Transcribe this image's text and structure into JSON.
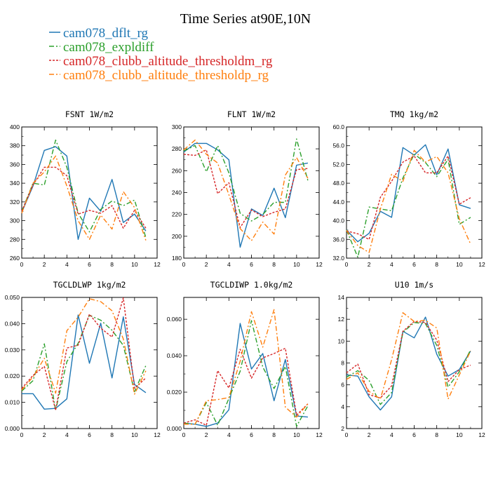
{
  "figure_title": "Time Series at90E,10N",
  "series_styles": [
    {
      "name": "cam078_dflt_rg",
      "color": "#1f77b4",
      "dash": ""
    },
    {
      "name": "cam078_expldiff",
      "color": "#2ca02c",
      "dash": "7,3,2,3"
    },
    {
      "name": "cam078_clubb_altitude_thresholdm_rg",
      "color": "#d62728",
      "dash": "3,2"
    },
    {
      "name": "cam078_clubb_altitude_thresholdp_rg",
      "color": "#ff7f0e",
      "dash": "7,3,2,3"
    }
  ],
  "chart_data": [
    {
      "type": "line",
      "title": "FSNT   1W/m2",
      "x": [
        0,
        1,
        2,
        3,
        4,
        5,
        6,
        7,
        8,
        9,
        10,
        11
      ],
      "xlim": [
        0,
        12
      ],
      "xticks": [
        "0",
        "2",
        "4",
        "6",
        "8",
        "10",
        "12"
      ],
      "ylim": [
        260,
        400
      ],
      "yticks": [
        "260",
        "280",
        "300",
        "320",
        "340",
        "360",
        "380",
        "400"
      ],
      "series": [
        {
          "name": "cam078_dflt_rg",
          "values": [
            309,
            337,
            375,
            379,
            369,
            280,
            324,
            310,
            344,
            298,
            307,
            289
          ]
        },
        {
          "name": "cam078_expldiff",
          "values": [
            310,
            340,
            338,
            386,
            357,
            308,
            288,
            312,
            321,
            316,
            322,
            282
          ]
        },
        {
          "name": "cam078_clubb_altitude_thresholdm_rg",
          "values": [
            310,
            338,
            357,
            357,
            348,
            307,
            311,
            308,
            316,
            292,
            311,
            292
          ]
        },
        {
          "name": "cam078_clubb_altitude_thresholdp_rg",
          "values": [
            308,
            340,
            352,
            369,
            337,
            300,
            280,
            306,
            291,
            331,
            314,
            279
          ]
        }
      ]
    },
    {
      "type": "line",
      "title": "FLNT   1W/m2",
      "x": [
        0,
        1,
        2,
        3,
        4,
        5,
        6,
        7,
        8,
        9,
        10,
        11
      ],
      "xlim": [
        0,
        12
      ],
      "xticks": [
        "0",
        "2",
        "4",
        "6",
        "8",
        "10",
        "12"
      ],
      "ylim": [
        180,
        300
      ],
      "yticks": [
        "180",
        "200",
        "220",
        "240",
        "260",
        "280",
        "300"
      ],
      "series": [
        {
          "name": "cam078_dflt_rg",
          "values": [
            277,
            285,
            285,
            279,
            270,
            190,
            225,
            219,
            244,
            217,
            265,
            267
          ]
        },
        {
          "name": "cam078_expldiff",
          "values": [
            278,
            283,
            259,
            283,
            258,
            221,
            214,
            220,
            231,
            231,
            289,
            251
          ]
        },
        {
          "name": "cam078_clubb_altitude_thresholdm_rg",
          "values": [
            275,
            274,
            279,
            239,
            249,
            208,
            224,
            218,
            222,
            225,
            261,
            262
          ]
        },
        {
          "name": "cam078_clubb_altitude_thresholdp_rg",
          "values": [
            279,
            288,
            275,
            267,
            238,
            207,
            196,
            213,
            202,
            256,
            272,
            253
          ]
        }
      ]
    },
    {
      "type": "line",
      "title": "TMQ   1kg/m2",
      "x": [
        0,
        1,
        2,
        3,
        4,
        5,
        6,
        7,
        8,
        9,
        10,
        11
      ],
      "xlim": [
        0,
        12
      ],
      "xticks": [
        "0",
        "2",
        "4",
        "6",
        "8",
        "10",
        "12"
      ],
      "ylim": [
        32,
        60
      ],
      "yticks": [
        "32.0",
        "36.0",
        "40.0",
        "44.0",
        "48.0",
        "52.0",
        "56.0",
        "60.0"
      ],
      "series": [
        {
          "name": "cam078_dflt_rg",
          "values": [
            38.0,
            35.5,
            37.3,
            42.0,
            40.7,
            55.6,
            54.0,
            56.2,
            49.8,
            55.3,
            43.4,
            42.6
          ]
        },
        {
          "name": "cam078_expldiff",
          "values": [
            38.0,
            32.2,
            42.9,
            42.5,
            42.1,
            49.1,
            54.2,
            52.4,
            49.4,
            53.1,
            39.2,
            40.7
          ]
        },
        {
          "name": "cam078_clubb_altitude_thresholdm_rg",
          "values": [
            37.8,
            37.2,
            36.0,
            45.0,
            48.4,
            52.5,
            53.8,
            50.2,
            50.2,
            53.8,
            43.5,
            44.9
          ]
        },
        {
          "name": "cam078_clubb_altitude_thresholdp_rg",
          "values": [
            37.9,
            34.7,
            33.2,
            42.5,
            49.9,
            48.4,
            55.0,
            52.5,
            53.7,
            50.2,
            40.4,
            35.0
          ]
        }
      ]
    },
    {
      "type": "line",
      "title": "TGCLDLWP   1kg/m2",
      "x": [
        0,
        1,
        2,
        3,
        4,
        5,
        6,
        7,
        8,
        9,
        10,
        11
      ],
      "xlim": [
        0,
        12
      ],
      "xticks": [
        "0",
        "2",
        "4",
        "6",
        "8",
        "10",
        "12"
      ],
      "ylim": [
        0,
        0.05
      ],
      "yticks": [
        "0.000",
        "0.010",
        "0.020",
        "0.030",
        "0.040",
        "0.050"
      ],
      "series": [
        {
          "name": "cam078_dflt_rg",
          "values": [
            0.0133,
            0.0133,
            0.0074,
            0.0077,
            0.0113,
            0.0433,
            0.0249,
            0.0402,
            0.0193,
            0.0426,
            0.0168,
            0.0137
          ]
        },
        {
          "name": "cam078_expldiff",
          "values": [
            0.0143,
            0.0183,
            0.0323,
            0.007,
            0.0255,
            0.0325,
            0.0432,
            0.0413,
            0.0375,
            0.0317,
            0.014,
            0.024
          ]
        },
        {
          "name": "cam078_clubb_altitude_thresholdm_rg",
          "values": [
            0.0153,
            0.0203,
            0.0237,
            0.007,
            0.0307,
            0.0318,
            0.0436,
            0.0383,
            0.0349,
            0.0498,
            0.0153,
            0.0193
          ]
        },
        {
          "name": "cam078_clubb_altitude_thresholdp_rg",
          "values": [
            0.0147,
            0.0197,
            0.0268,
            0.0135,
            0.0373,
            0.0425,
            0.0495,
            0.0484,
            0.0449,
            0.0342,
            0.0131,
            0.022
          ]
        }
      ]
    },
    {
      "type": "line",
      "title": "TGCLDIWP   1.0kg/m2",
      "x": [
        0,
        1,
        2,
        3,
        4,
        5,
        6,
        7,
        8,
        9,
        10,
        11
      ],
      "xlim": [
        0,
        12
      ],
      "xticks": [
        "0",
        "2",
        "4",
        "6",
        "8",
        "10",
        "12"
      ],
      "ylim": [
        0,
        0.072
      ],
      "yticks": [
        "0.000",
        "0.020",
        "0.040",
        "0.060"
      ],
      "series": [
        {
          "name": "cam078_dflt_rg",
          "values": [
            0.003,
            0.0024,
            0.0012,
            0.003,
            0.0103,
            0.0577,
            0.0327,
            0.0412,
            0.0153,
            0.0379,
            0.0069,
            0.0063
          ]
        },
        {
          "name": "cam078_expldiff",
          "values": [
            0.003,
            0.0024,
            0.0143,
            0.0018,
            0.0165,
            0.0315,
            0.0593,
            0.0338,
            0.022,
            0.0341,
            0.0012,
            0.0125
          ]
        },
        {
          "name": "cam078_clubb_altitude_thresholdm_rg",
          "values": [
            0.003,
            0.0048,
            0.0018,
            0.0318,
            0.0223,
            0.0435,
            0.0277,
            0.0388,
            0.0412,
            0.0441,
            0.0074,
            0.0136
          ]
        },
        {
          "name": "cam078_clubb_altitude_thresholdp_rg",
          "values": [
            0.0024,
            0.0024,
            0.0153,
            0.0159,
            0.017,
            0.037,
            0.0642,
            0.0447,
            0.0653,
            0.0118,
            0.0063,
            0.0136
          ]
        }
      ]
    },
    {
      "type": "line",
      "title": "U10   1m/s",
      "x": [
        0,
        1,
        2,
        3,
        4,
        5,
        6,
        7,
        8,
        9,
        10,
        11
      ],
      "xlim": [
        0,
        12
      ],
      "xticks": [
        "0",
        "2",
        "4",
        "6",
        "8",
        "10",
        "12"
      ],
      "ylim": [
        2,
        14
      ],
      "yticks": [
        "2",
        "4",
        "6",
        "8",
        "10",
        "12",
        "14"
      ],
      "series": [
        {
          "name": "cam078_dflt_rg",
          "values": [
            6.9,
            6.8,
            4.9,
            3.7,
            4.9,
            10.9,
            10.3,
            12.2,
            8.8,
            6.8,
            7.4,
            9.1
          ]
        },
        {
          "name": "cam078_expldiff",
          "values": [
            6.7,
            7.3,
            6.4,
            4.2,
            5.3,
            10.8,
            11.7,
            11.6,
            9.6,
            5.8,
            7.2,
            9.2
          ]
        },
        {
          "name": "cam078_clubb_altitude_thresholdm_rg",
          "values": [
            7.1,
            7.9,
            5.1,
            4.8,
            5.9,
            10.9,
            11.8,
            11.7,
            10.1,
            6.3,
            7.4,
            7.8
          ]
        },
        {
          "name": "cam078_clubb_altitude_thresholdp_rg",
          "values": [
            6.5,
            7.1,
            5.4,
            4.7,
            8.3,
            12.6,
            11.8,
            11.9,
            11.2,
            4.7,
            6.9,
            9.1
          ]
        }
      ]
    }
  ]
}
